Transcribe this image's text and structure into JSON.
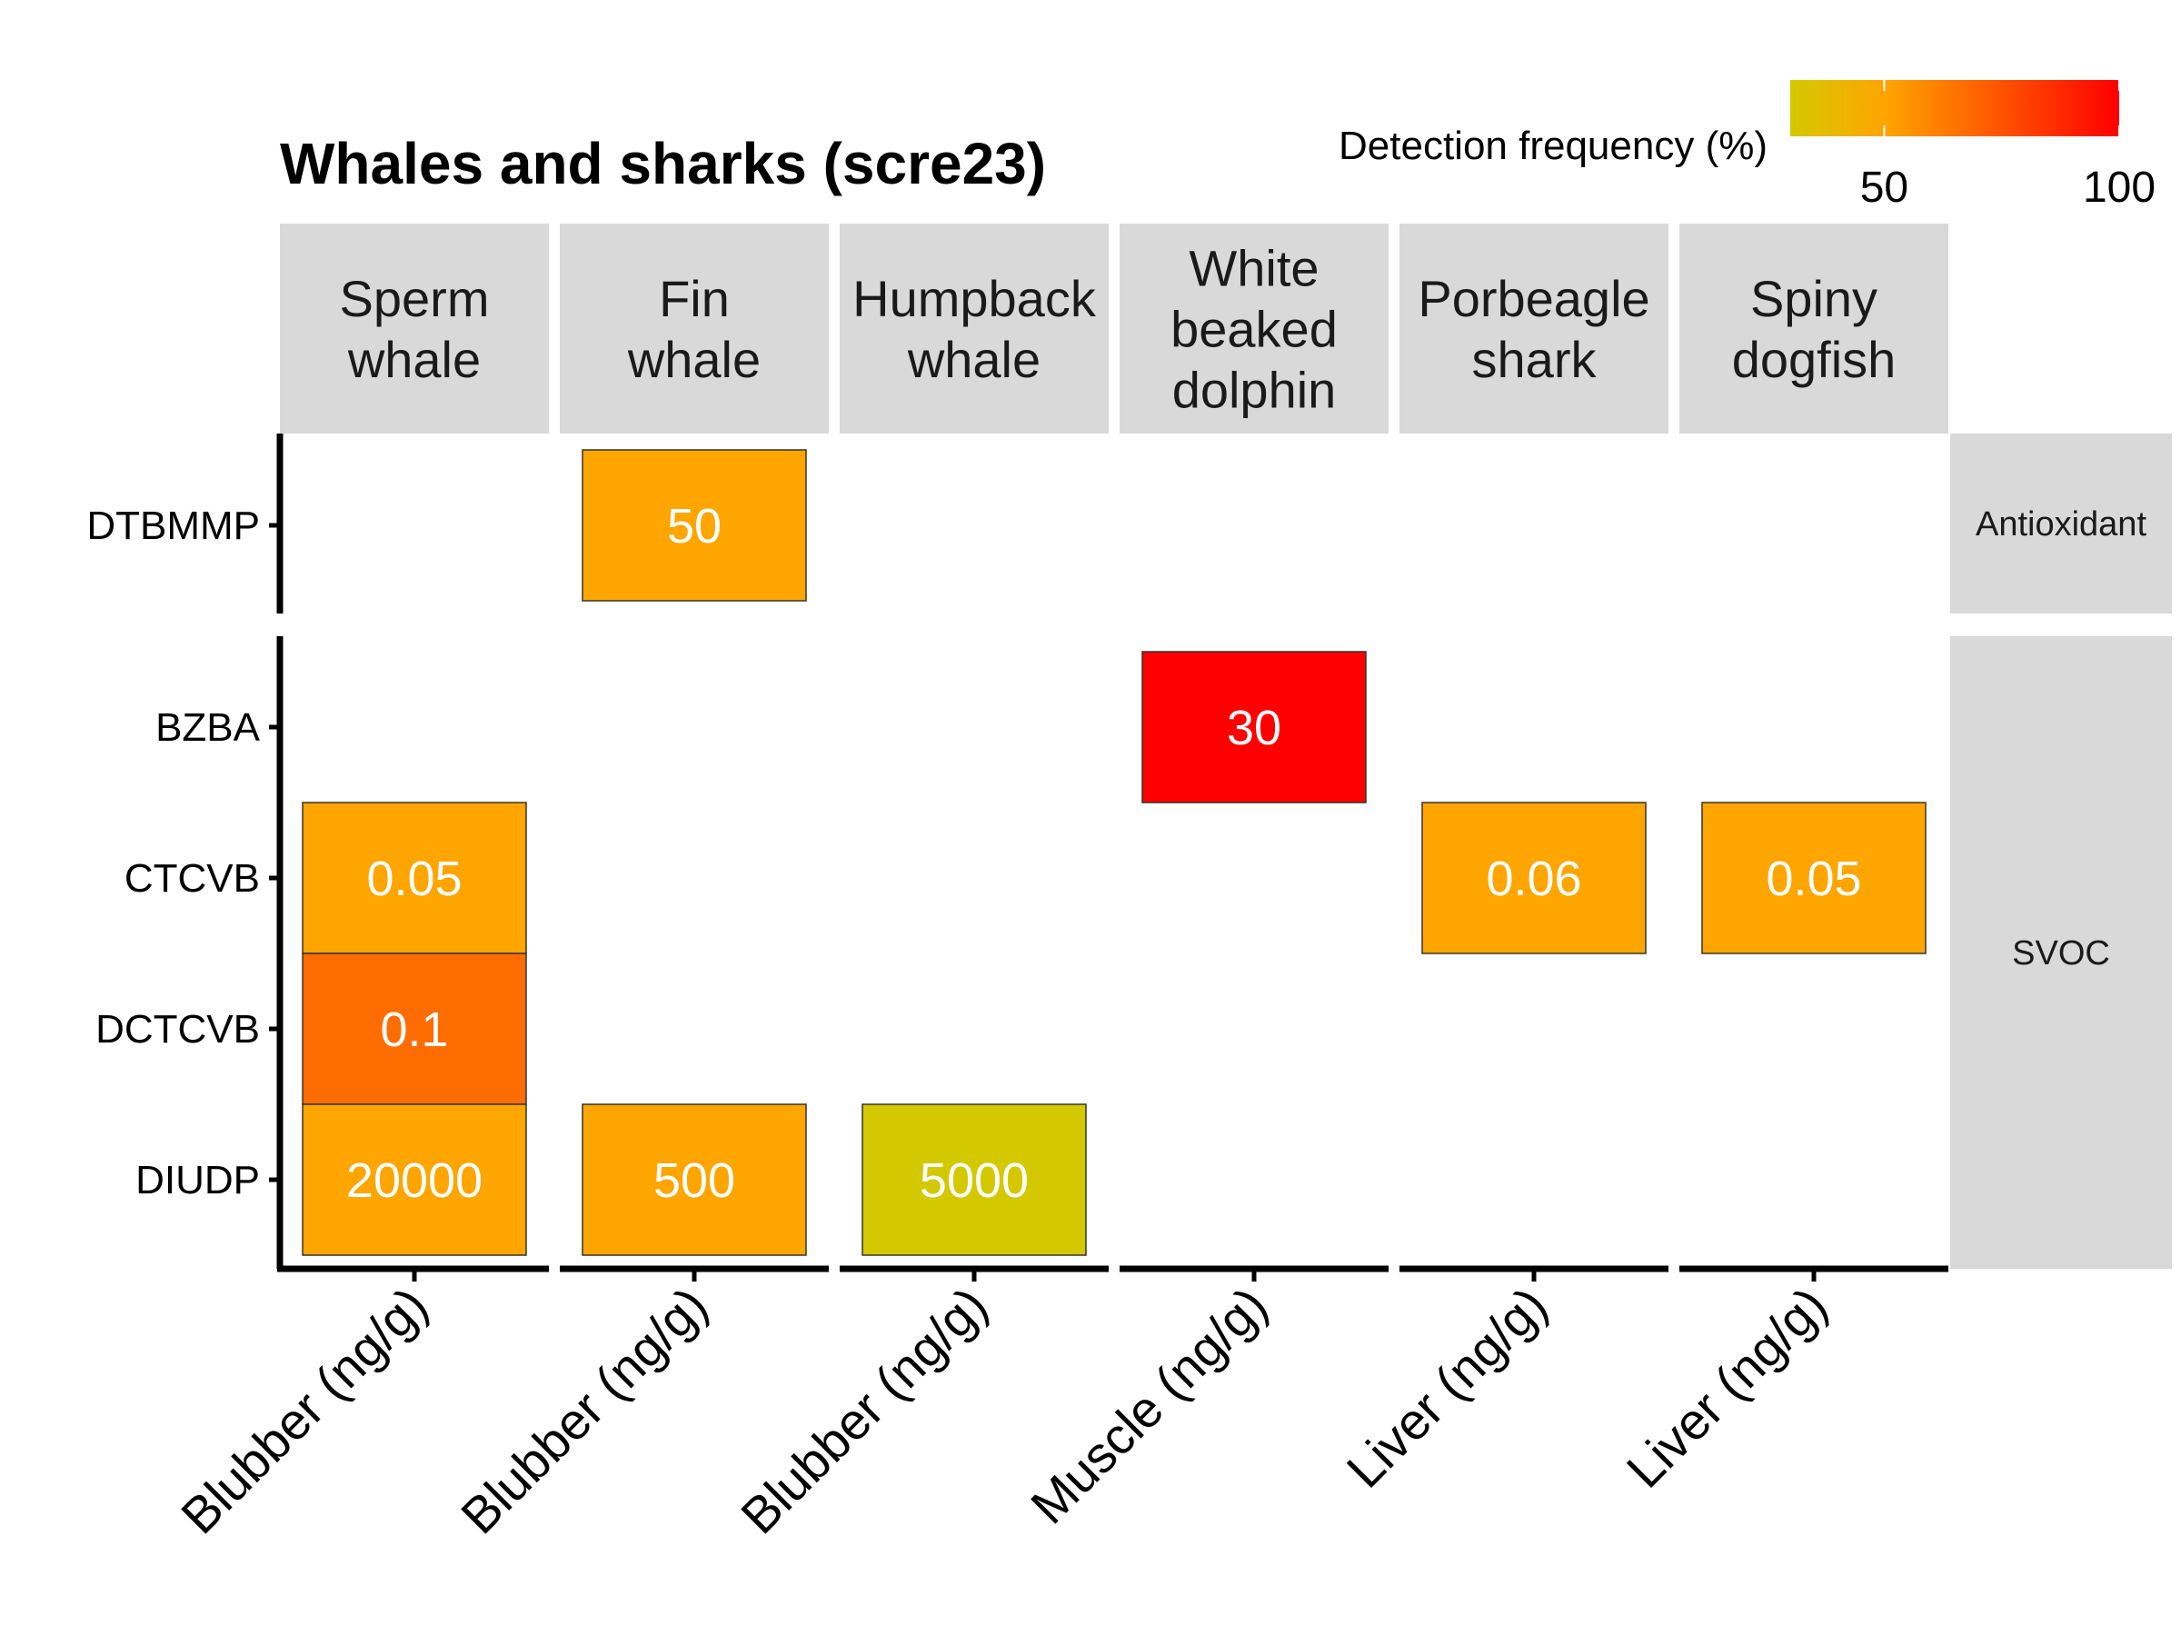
{
  "chart_data": {
    "type": "heatmap",
    "title": "Whales and sharks (scre23)",
    "legend": {
      "title": "Detection frequency (%)",
      "ticks": [
        "50",
        "100"
      ],
      "range": [
        30,
        100
      ],
      "tick_values": [
        50,
        100
      ],
      "colors": [
        "#d4c800",
        "#ffa500",
        "#ff0000"
      ],
      "placement": "top-right"
    },
    "species": [
      "Sperm\nwhale",
      "Fin\nwhale",
      "Humpback\nwhale",
      "White\nbeaked\ndolphin",
      "Porbeagle\nshark",
      "Spiny\ndogfish"
    ],
    "tissues": [
      "Blubber (ng/g)",
      "Blubber (ng/g)",
      "Blubber (ng/g)",
      "Muscle (ng/g)",
      "Liver (ng/g)",
      "Liver (ng/g)"
    ],
    "groups": [
      {
        "name": "Antioxidant",
        "compounds": [
          "DTBMMP"
        ]
      },
      {
        "name": "SVOC",
        "compounds": [
          "BZBA",
          "CTCVB",
          "DCTCVB",
          "DIUDP"
        ]
      }
    ],
    "cells": [
      {
        "species": 1,
        "compound": "DTBMMP",
        "label": "50",
        "frequency": 50
      },
      {
        "species": 3,
        "compound": "BZBA",
        "label": "30",
        "frequency": 100
      },
      {
        "species": 0,
        "compound": "CTCVB",
        "label": "0.05",
        "frequency": 50
      },
      {
        "species": 4,
        "compound": "CTCVB",
        "label": "0.06",
        "frequency": 50
      },
      {
        "species": 5,
        "compound": "CTCVB",
        "label": "0.05",
        "frequency": 50
      },
      {
        "species": 0,
        "compound": "DCTCVB",
        "label": "0.1",
        "frequency": 67
      },
      {
        "species": 0,
        "compound": "DIUDP",
        "label": "20000",
        "frequency": 50
      },
      {
        "species": 1,
        "compound": "DIUDP",
        "label": "500",
        "frequency": 50
      },
      {
        "species": 2,
        "compound": "DIUDP",
        "label": "5000",
        "frequency": 30
      }
    ]
  }
}
